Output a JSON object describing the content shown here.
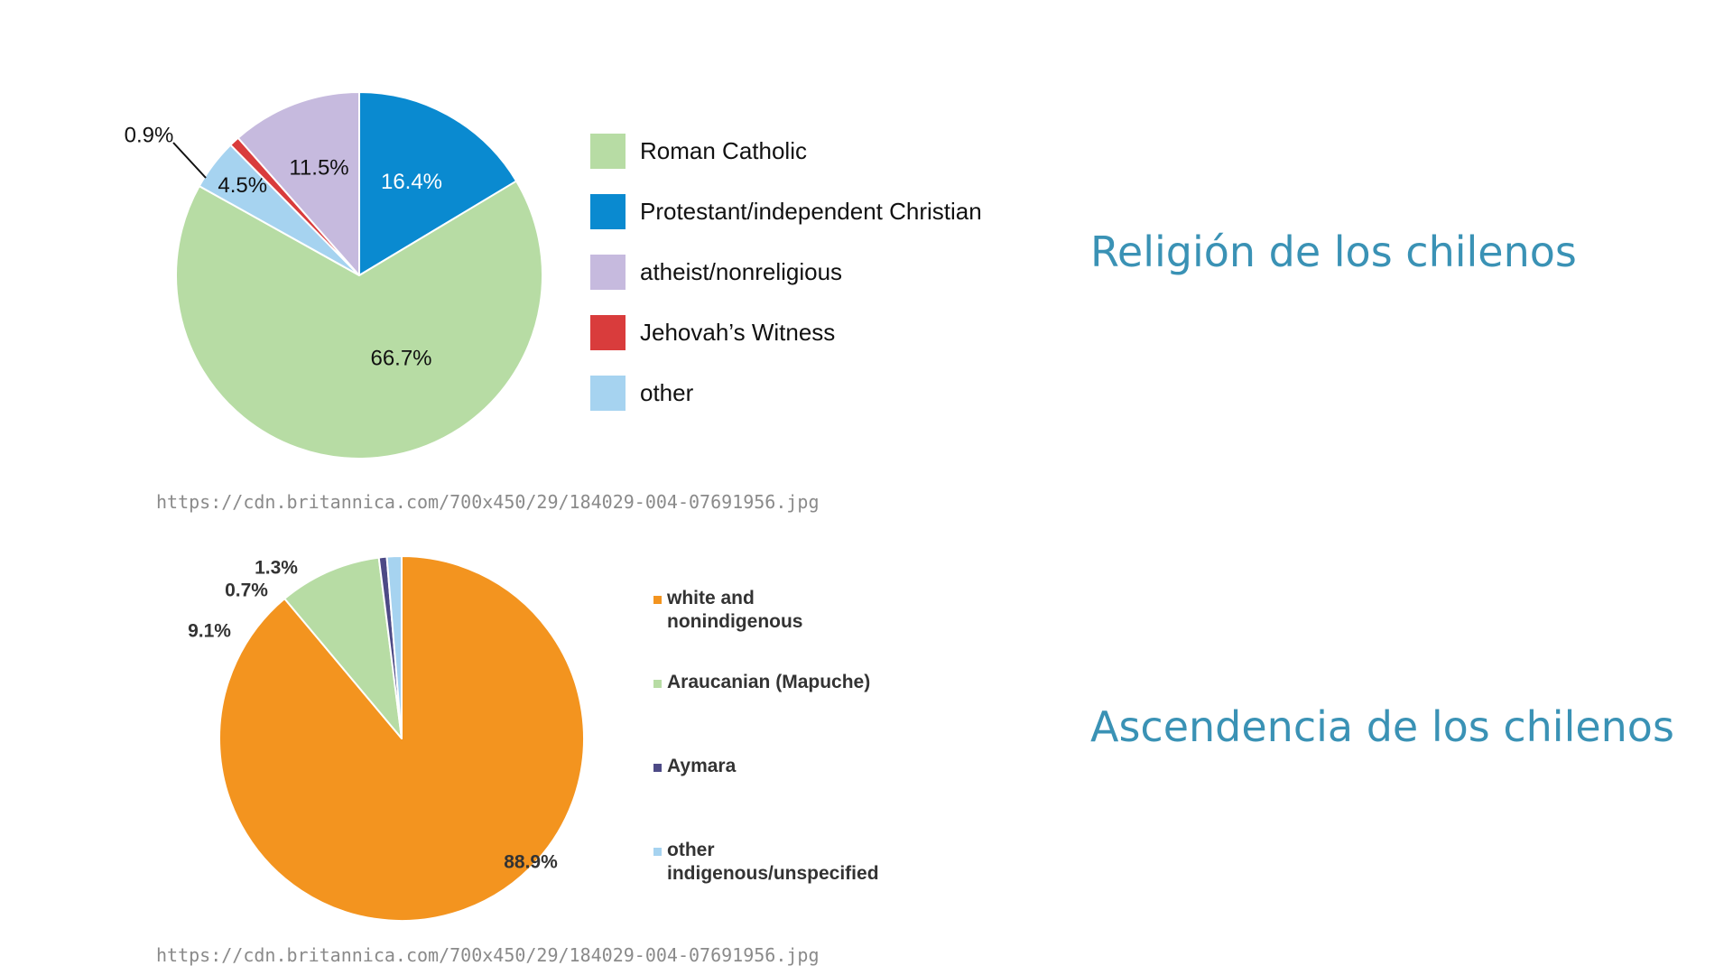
{
  "titles": {
    "religion": "Religión de los chilenos",
    "ancestry": "Ascendencia de los chilenos"
  },
  "sources": {
    "religion_url": "https://cdn.britannica.com/700x450/29/184029-004-07691956.jpg",
    "ancestry_url": "https://cdn.britannica.com/700x450/29/184029-004-07691956.jpg"
  },
  "chart_data": [
    {
      "type": "pie",
      "title": "",
      "start_clockwise_from": "top",
      "legend_position": "right",
      "slices": [
        {
          "label": "Protestant/independent Christian",
          "value": 16.4,
          "value_label": "16.4%",
          "color": "#0a8ad0",
          "label_color": "#ffffff"
        },
        {
          "label": "Roman Catholic",
          "value": 66.7,
          "value_label": "66.7%",
          "color": "#b7dca4",
          "label_color": "#111111"
        },
        {
          "label": "other",
          "value": 4.5,
          "value_label": "4.5%",
          "color": "#a6d3f0",
          "label_color": "#111111"
        },
        {
          "label": "Jehovah’s Witness",
          "value": 0.9,
          "value_label": "0.9%",
          "color": "#d93c3c",
          "label_color": "#111111"
        },
        {
          "label": "atheist/nonreligious",
          "value": 11.5,
          "value_label": "11.5%",
          "color": "#c6bade",
          "label_color": "#111111"
        }
      ],
      "legend": [
        {
          "label": "Roman Catholic",
          "color": "#b7dca4"
        },
        {
          "label": "Protestant/independent Christian",
          "color": "#0a8ad0"
        },
        {
          "label": "atheist/nonreligious",
          "color": "#c6bade"
        },
        {
          "label": "Jehovah’s Witness",
          "color": "#d93c3c"
        },
        {
          "label": "other",
          "color": "#a6d3f0"
        }
      ]
    },
    {
      "type": "pie",
      "title": "",
      "start_clockwise_from": "top",
      "legend_position": "right",
      "slices": [
        {
          "label": "white and nonindigenous",
          "value": 88.9,
          "value_label": "88.9%",
          "color": "#f3941f",
          "label_color": "#333333"
        },
        {
          "label": "Araucanian (Mapuche)",
          "value": 9.1,
          "value_label": "9.1%",
          "color": "#b7dca4",
          "label_color": "#333333"
        },
        {
          "label": "Aymara",
          "value": 0.7,
          "value_label": "0.7%",
          "color": "#4d4a86",
          "label_color": "#333333"
        },
        {
          "label": "other indigenous/unspecified",
          "value": 1.3,
          "value_label": "1.3%",
          "color": "#a6d3f0",
          "label_color": "#333333"
        }
      ],
      "legend": [
        {
          "label": "white and\nnonindigenous",
          "color": "#f3941f"
        },
        {
          "label": "Araucanian (Mapuche)",
          "color": "#b7dca4"
        },
        {
          "label": "Aymara",
          "color": "#4d4a86"
        },
        {
          "label": "other\nindigenous/unspecified",
          "color": "#a6d3f0"
        }
      ]
    }
  ]
}
